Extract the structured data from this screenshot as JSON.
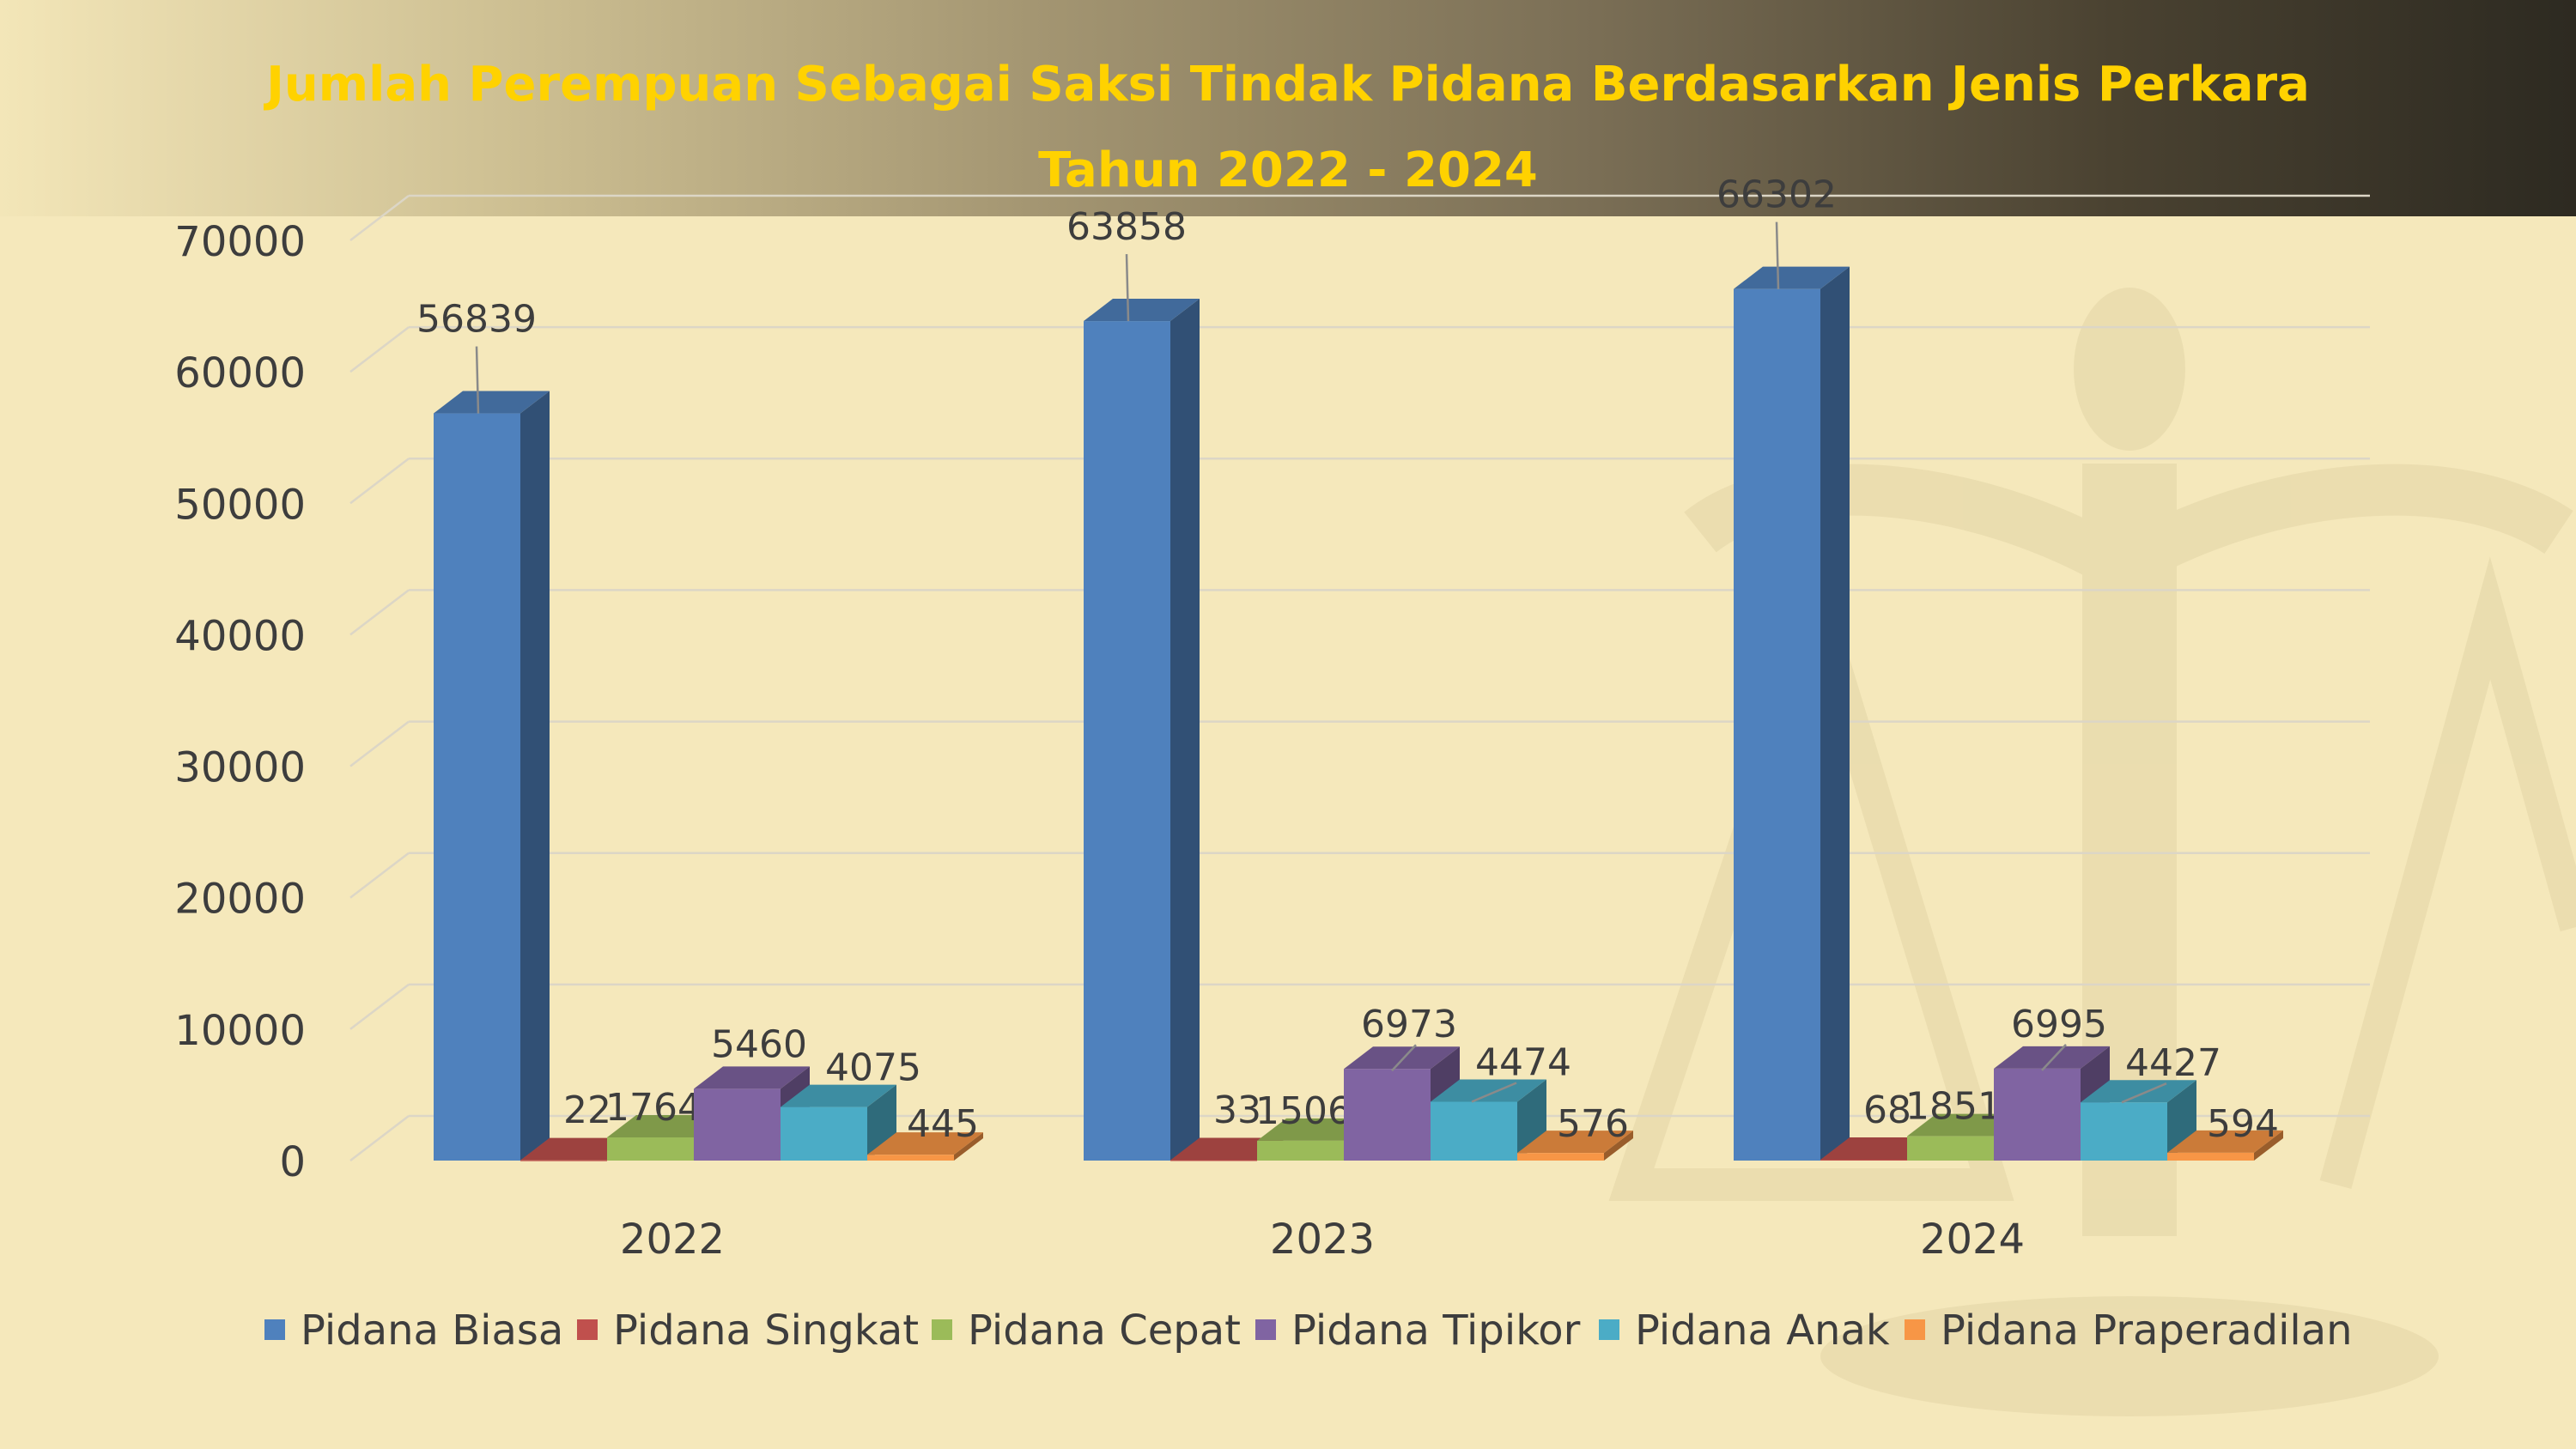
{
  "title": "Jumlah Perempuan Sebagai Saksi Tindak Pidana Berdasarkan Jenis Perkara",
  "subtitle": "Tahun 2022 - 2024",
  "colors": {
    "background": "#f5e8bb",
    "title": "#ffd200",
    "grid": "#dcd6c6",
    "text": "#3d3d3d"
  },
  "chart_data": {
    "type": "bar",
    "title": "Jumlah Perempuan Sebagai Saksi Tindak Pidana Berdasarkan Jenis Perkara",
    "subtitle": "Tahun 2022 - 2024",
    "categories": [
      "2022",
      "2023",
      "2024"
    ],
    "series": [
      {
        "name": "Pidana Biasa",
        "values": [
          56839,
          63858,
          66302
        ],
        "color": "#4f81bd"
      },
      {
        "name": "Pidana Singkat",
        "values": [
          22,
          33,
          68
        ],
        "color": "#c0504d"
      },
      {
        "name": "Pidana Cepat",
        "values": [
          1764,
          1506,
          1851
        ],
        "color": "#9bbb59"
      },
      {
        "name": "Pidana Tipikor",
        "values": [
          5460,
          6973,
          6995
        ],
        "color": "#8064a2"
      },
      {
        "name": "Pidana Anak",
        "values": [
          4075,
          4474,
          4427
        ],
        "color": "#4bacc6"
      },
      {
        "name": "Pidana Praperadilan",
        "values": [
          445,
          576,
          594
        ],
        "color": "#f79646"
      }
    ],
    "yticks": [
      "0",
      "10000",
      "20000",
      "30000",
      "40000",
      "50000",
      "60000",
      "70000"
    ],
    "ylim": [
      0,
      70000
    ],
    "grid": true,
    "legend_position": "bottom",
    "data_labels": true,
    "style": "3d-column"
  }
}
